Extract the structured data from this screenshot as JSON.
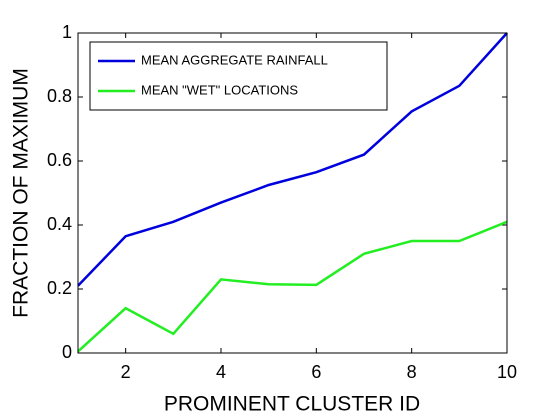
{
  "chart_data": {
    "type": "line",
    "xlabel": "PROMINENT CLUSTER ID",
    "ylabel": "FRACTION OF MAXIMUM",
    "x": [
      1,
      2,
      3,
      4,
      5,
      6,
      7,
      8,
      9,
      10
    ],
    "series": [
      {
        "name": "MEAN AGGREGATE RAINFALL",
        "color": "#0000dd",
        "values": [
          0.21,
          0.365,
          0.41,
          0.47,
          0.525,
          0.565,
          0.62,
          0.755,
          0.835,
          1.0
        ]
      },
      {
        "name": "MEAN \"WET\" LOCATIONS",
        "color": "#22ee22",
        "values": [
          0.005,
          0.14,
          0.06,
          0.23,
          0.215,
          0.213,
          0.31,
          0.35,
          0.35,
          0.41
        ]
      }
    ],
    "xlim": [
      1,
      10
    ],
    "xticks": [
      2,
      4,
      6,
      8,
      10
    ],
    "ylim": [
      0,
      1
    ],
    "yticks": [
      0,
      0.2,
      0.4,
      0.6,
      0.8,
      1
    ],
    "legend": "upper left"
  }
}
